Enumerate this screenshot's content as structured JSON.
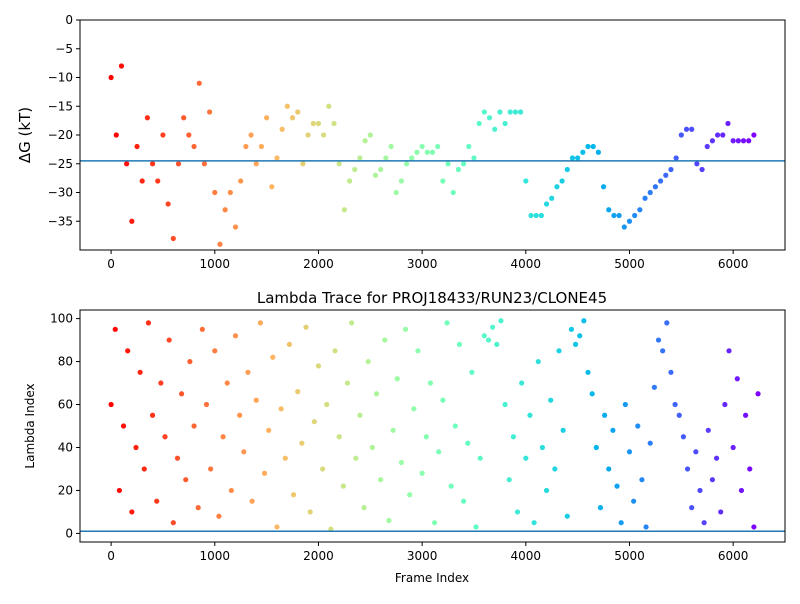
{
  "chart_data": [
    {
      "type": "scatter",
      "title": "",
      "xlabel": "",
      "ylabel": "ΔG (kT)",
      "xlim": [
        -300,
        6500
      ],
      "ylim": [
        -40,
        0
      ],
      "xticks": [
        0,
        1000,
        2000,
        3000,
        4000,
        5000,
        6000
      ],
      "yticks": [
        0,
        -5,
        -10,
        -15,
        -20,
        -25,
        -30,
        -35
      ],
      "colormap": "rainbow (red at frame 0 → purple at last frame)",
      "hline": {
        "value": -24.5,
        "color": "#1f77b4"
      },
      "x_step": 50,
      "values": [
        -10,
        -20,
        -8,
        -25,
        -35,
        -22,
        -28,
        -17,
        -25,
        -28,
        -20,
        -32,
        -38,
        -25,
        -17,
        -20,
        -22,
        -11,
        -25,
        -16,
        -30,
        -39,
        -33,
        -30,
        -36,
        -28,
        -22,
        -20,
        -25,
        -22,
        -17,
        -29,
        -24,
        -19,
        -15,
        -17,
        -16,
        -25,
        -20,
        -18,
        -18,
        -20,
        -15,
        -18,
        -25,
        -33,
        -28,
        -26,
        -24,
        -21,
        -20,
        -27,
        -26,
        -24,
        -22,
        -30,
        -28,
        -25,
        -24,
        -23,
        -22,
        -23,
        -23,
        -22,
        -28,
        -25,
        -30,
        -26,
        -25,
        -22,
        -24,
        -18,
        -16,
        -17,
        -19,
        -16,
        -18,
        -16,
        -16,
        -16,
        -28,
        -34,
        -34,
        -34,
        -32,
        -31,
        -29,
        -28,
        -26,
        -24,
        -24,
        -23,
        -22,
        -22,
        -23,
        -29,
        -33,
        -34,
        -34,
        -36,
        -35,
        -34,
        -33,
        -31,
        -30,
        -29,
        -28,
        -27,
        -26,
        -24,
        -20,
        -19,
        -19,
        -25,
        -26,
        -22,
        -21,
        -20,
        -20,
        -18,
        -21,
        -21,
        -21,
        -21,
        -20
      ]
    },
    {
      "type": "scatter",
      "title": "Lambda Trace for PROJ18433/RUN23/CLONE45",
      "xlabel": "Frame Index",
      "ylabel": "Lambda Index",
      "xlim": [
        -300,
        6500
      ],
      "ylim": [
        -4,
        104
      ],
      "xticks": [
        0,
        1000,
        2000,
        3000,
        4000,
        5000,
        6000
      ],
      "yticks": [
        0,
        20,
        40,
        60,
        80,
        100
      ],
      "colormap": "rainbow (red at frame 0 → purple at last frame)",
      "hline": {
        "value": 1,
        "color": "#1f77b4"
      },
      "x_step": 40,
      "values": [
        60,
        95,
        20,
        50,
        85,
        10,
        40,
        75,
        30,
        98,
        55,
        15,
        70,
        45,
        90,
        5,
        35,
        65,
        25,
        80,
        50,
        12,
        95,
        60,
        30,
        85,
        8,
        45,
        70,
        20,
        92,
        55,
        38,
        75,
        15,
        62,
        98,
        28,
        48,
        82,
        3,
        58,
        35,
        88,
        18,
        66,
        42,
        96,
        10,
        52,
        78,
        30,
        60,
        2,
        85,
        45,
        22,
        70,
        98,
        35,
        55,
        12,
        80,
        40,
        65,
        25,
        90,
        6,
        48,
        72,
        33,
        95,
        18,
        58,
        85,
        28,
        45,
        70,
        5,
        38,
        62,
        98,
        22,
        50,
        88,
        15,
        42,
        75,
        3,
        35,
        92,
        90,
        96,
        88,
        99,
        60,
        25,
        45,
        10,
        70,
        35,
        55,
        5,
        80,
        40,
        20,
        62,
        30,
        85,
        48,
        8,
        95,
        88,
        92,
        99,
        75,
        65,
        40,
        12,
        55,
        30,
        48,
        22,
        5,
        60,
        38,
        15,
        50,
        25,
        3,
        42,
        68,
        90,
        85,
        98,
        75,
        60,
        55,
        45,
        30,
        12,
        38,
        20,
        5,
        48,
        25,
        35,
        10,
        60,
        85,
        40,
        72,
        20,
        55,
        30,
        3,
        65
      ]
    }
  ]
}
